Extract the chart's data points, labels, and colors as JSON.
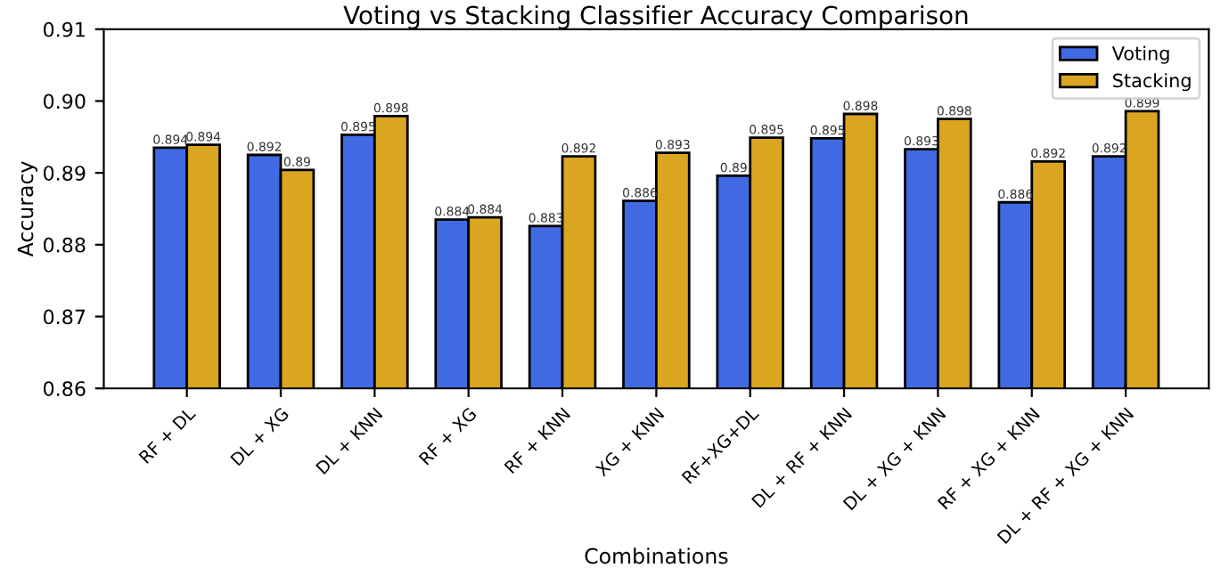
{
  "chart_data": {
    "type": "bar",
    "title": "Voting vs Stacking Classifier Accuracy Comparison",
    "xlabel": "Combinations",
    "ylabel": "Accuracy",
    "categories": [
      "RF + DL",
      "DL + XG",
      "DL + KNN",
      "RF + XG",
      "RF + KNN",
      "XG + KNN",
      "RF+XG+DL",
      "DL + RF + KNN",
      "DL + XG + KNN",
      "RF + XG + KNN",
      "DL + RF + XG + KNN"
    ],
    "series": [
      {
        "name": "Voting",
        "color": "#4169e1",
        "values": [
          0.8935,
          0.8925,
          0.8953,
          0.8835,
          0.8826,
          0.8861,
          0.8896,
          0.8948,
          0.8933,
          0.8859,
          0.8923
        ],
        "value_labels": [
          "0.894",
          "0.892",
          "0.895",
          "0.884",
          "0.883",
          "0.886",
          "0.89",
          "0.895",
          "0.893",
          "0.886",
          "0.892"
        ]
      },
      {
        "name": "Stacking",
        "color": "#daa520",
        "values": [
          0.8939,
          0.8904,
          0.8979,
          0.8838,
          0.8923,
          0.8928,
          0.8949,
          0.8982,
          0.8975,
          0.8916,
          0.8986
        ],
        "value_labels": [
          "0.894",
          "0.89",
          "0.898",
          "0.884",
          "0.892",
          "0.893",
          "0.895",
          "0.898",
          "0.898",
          "0.892",
          "0.899"
        ]
      }
    ],
    "ylim": [
      0.86,
      0.91
    ],
    "yticks": [
      {
        "value": 0.86,
        "label": "0.86"
      },
      {
        "value": 0.87,
        "label": "0.87"
      },
      {
        "value": 0.88,
        "label": "0.88"
      },
      {
        "value": 0.89,
        "label": "0.89"
      },
      {
        "value": 0.9,
        "label": "0.90"
      },
      {
        "value": 0.91,
        "label": "0.91"
      }
    ],
    "legend": "top right",
    "grid": false
  }
}
